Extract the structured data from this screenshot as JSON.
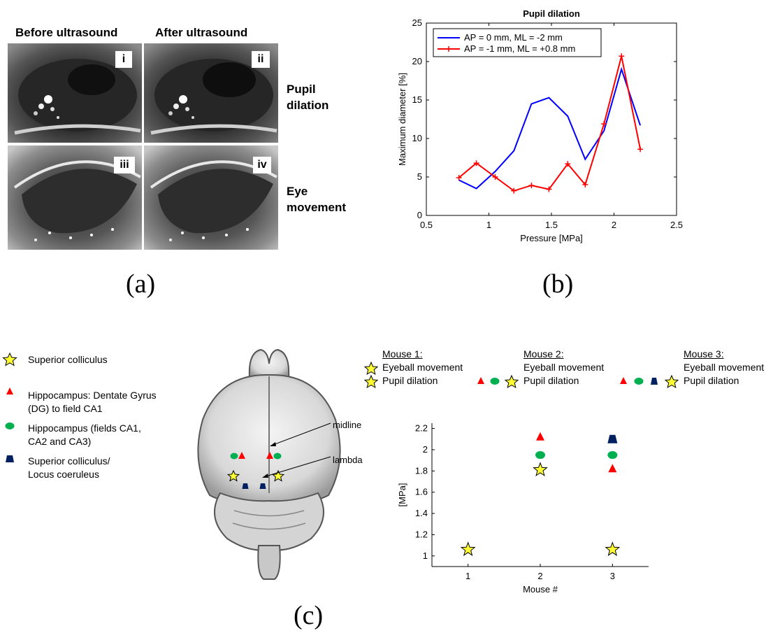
{
  "panel_a": {
    "label": "(a)",
    "col_before": "Before ultrasound",
    "col_after": "After ultrasound",
    "tags": [
      "i",
      "ii",
      "iii",
      "iv"
    ],
    "row_pupil": "Pupil dilation",
    "row_pupil_l1": "Pupil",
    "row_pupil_l2": "dilation",
    "row_eye_l1": "Eye",
    "row_eye_l2": "movement"
  },
  "panel_b": {
    "label": "(b)"
  },
  "panel_c": {
    "label": "(c)",
    "legend": [
      {
        "marker": "star",
        "text_l1": "Superior colliculus",
        "text_l2": ""
      },
      {
        "marker": "triangle",
        "text_l1": "Hippocampus: Dentate Gyrus",
        "text_l2": "(DG) to field CA1"
      },
      {
        "marker": "ellipse",
        "text_l1": "Hippocampus (fields CA1,",
        "text_l2": "CA2 and CA3)"
      },
      {
        "marker": "trapezoid",
        "text_l1": "Superior colliculus/",
        "text_l2": "Locus coeruleus"
      }
    ],
    "brain": {
      "midline": "midline",
      "lambda": "lambda"
    },
    "mice": [
      {
        "title": "Mouse 1:",
        "eyeball": "Eyeball movement",
        "pupil": "Pupil dilation"
      },
      {
        "title": "Mouse 2:",
        "eyeball": "Eyeball movement",
        "pupil": "Pupil dilation"
      },
      {
        "title": "Mouse 3:",
        "eyeball": "Eyeball movement",
        "pupil": "Pupil dilation"
      }
    ]
  },
  "colors": {
    "blue": "#0000ff",
    "red": "#ff0000",
    "green": "#00b050",
    "navy": "#002060",
    "star": "#ffff33"
  },
  "chart_data": [
    {
      "type": "line",
      "title": "Pupil dilation",
      "xlabel": "Pressure [MPa]",
      "ylabel": "Maximum diameter [%]",
      "xlim": [
        0.5,
        2.5
      ],
      "ylim": [
        0,
        25
      ],
      "xticks": [
        "0.5",
        "1",
        "1.5",
        "2",
        "2.5"
      ],
      "yticks": [
        "0",
        "5",
        "10",
        "15",
        "20",
        "25"
      ],
      "legend_position": "top-left",
      "series": [
        {
          "name": "AP = 0 mm, ML = -2 mm",
          "color": "#0000ff",
          "marker": "none",
          "x": [
            0.76,
            0.9,
            1.05,
            1.2,
            1.34,
            1.48,
            1.63,
            1.77,
            1.92,
            2.06,
            2.21
          ],
          "y": [
            4.6,
            3.5,
            5.7,
            8.4,
            14.5,
            15.3,
            12.9,
            7.3,
            11.0,
            19.0,
            11.7
          ]
        },
        {
          "name": "AP = -1 mm, ML = +0.8 mm",
          "color": "#ff0000",
          "marker": "plus",
          "x": [
            0.76,
            0.9,
            1.05,
            1.2,
            1.34,
            1.48,
            1.63,
            1.77,
            1.92,
            2.06,
            2.21
          ],
          "y": [
            4.9,
            6.8,
            5.0,
            3.2,
            3.9,
            3.4,
            6.7,
            4.0,
            11.9,
            20.7,
            8.6
          ]
        }
      ]
    },
    {
      "type": "scatter",
      "xlabel": "Mouse #",
      "ylabel": "[MPa]",
      "xlim": [
        0.5,
        3.5
      ],
      "ylim": [
        0.9,
        2.25
      ],
      "xticks": [
        "1",
        "2",
        "3"
      ],
      "yticks": [
        "1",
        "1.2",
        "1.4",
        "1.6",
        "1.8",
        "2",
        "2.2"
      ],
      "points": [
        {
          "x": 1,
          "y": 1.06,
          "marker": "star"
        },
        {
          "x": 2,
          "y": 2.12,
          "marker": "triangle"
        },
        {
          "x": 2,
          "y": 1.95,
          "marker": "ellipse"
        },
        {
          "x": 2,
          "y": 1.81,
          "marker": "star"
        },
        {
          "x": 3,
          "y": 2.1,
          "marker": "trapezoid"
        },
        {
          "x": 3,
          "y": 1.95,
          "marker": "ellipse"
        },
        {
          "x": 3,
          "y": 1.82,
          "marker": "triangle"
        },
        {
          "x": 3,
          "y": 1.06,
          "marker": "star"
        }
      ]
    }
  ]
}
